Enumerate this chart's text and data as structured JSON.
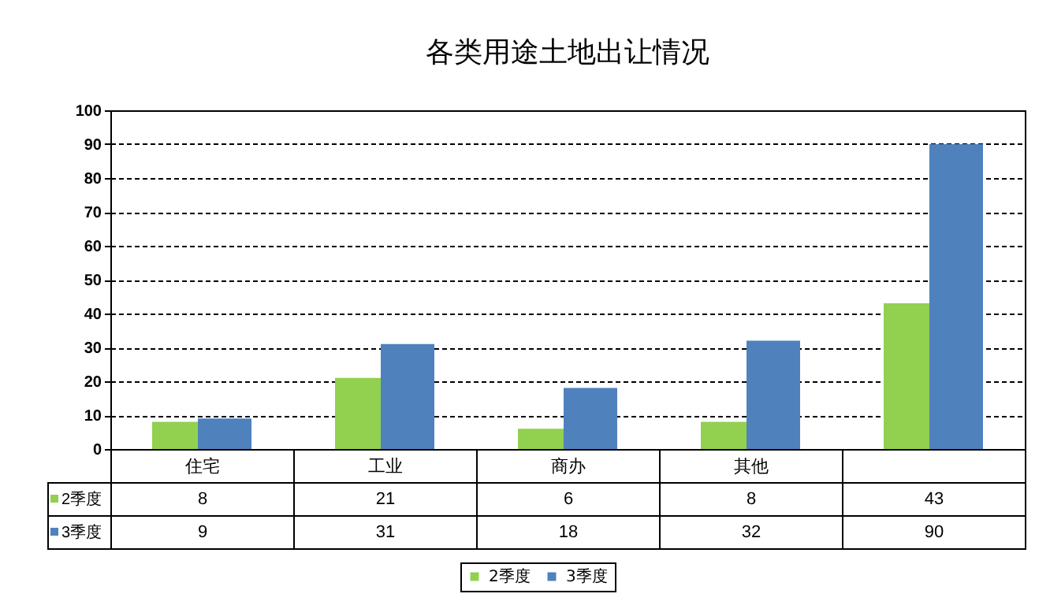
{
  "chart_data": {
    "type": "bar",
    "title": "各类用途土地出让情况",
    "categories": [
      "住宅",
      "工业",
      "商办",
      "其他",
      null
    ],
    "series": [
      {
        "name": "2季度",
        "color": "#92d050",
        "values": [
          8,
          21,
          6,
          8,
          43
        ]
      },
      {
        "name": "3季度",
        "color": "#4f81bd",
        "values": [
          9,
          31,
          18,
          32,
          90
        ]
      }
    ],
    "ylim": [
      0,
      100
    ],
    "yticks": [
      0,
      10,
      20,
      30,
      40,
      50,
      60,
      70,
      80,
      90,
      100
    ],
    "grid": "y",
    "legend": "bottom",
    "data_labels": true
  }
}
